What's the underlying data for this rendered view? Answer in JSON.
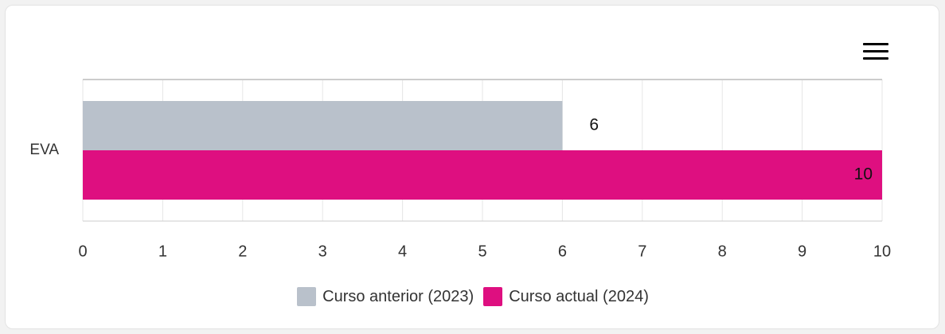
{
  "chart_data": {
    "type": "bar",
    "orientation": "horizontal",
    "categories": [
      "EVA"
    ],
    "series": [
      {
        "name": "Curso anterior (2023)",
        "values": [
          6
        ],
        "color": "#b9c1cb"
      },
      {
        "name": "Curso actual (2024)",
        "values": [
          10
        ],
        "color": "#de0f80"
      }
    ],
    "xlim": [
      0,
      10
    ],
    "xticks": [
      "0",
      "1",
      "2",
      "3",
      "4",
      "5",
      "6",
      "7",
      "8",
      "9",
      "10"
    ],
    "data_labels": [
      "6",
      "10"
    ],
    "legend_position": "bottom-center",
    "grid": "vertical"
  },
  "menu": {
    "icon": "hamburger-menu-icon"
  }
}
